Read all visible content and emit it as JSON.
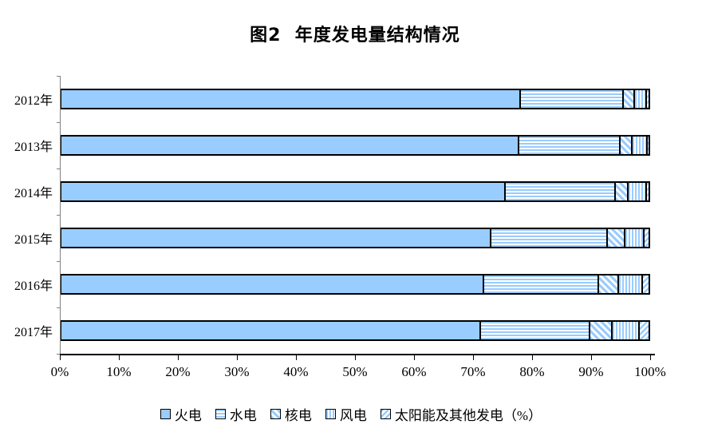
{
  "chart_data": {
    "type": "bar",
    "orientation": "horizontal",
    "stacked": true,
    "title": "图2  年度发电量结构情况",
    "categories": [
      "2012年",
      "2013年",
      "2014年",
      "2015年",
      "2016年",
      "2017年"
    ],
    "series": [
      {
        "name": "火电",
        "key": "thermal",
        "pattern": "solid",
        "values": [
          78.1,
          77.8,
          75.6,
          73.1,
          71.9,
          71.4
        ]
      },
      {
        "name": "水电",
        "key": "hydro",
        "pattern": "horizontal-stripes",
        "values": [
          17.4,
          17.2,
          18.6,
          19.8,
          19.5,
          18.4
        ]
      },
      {
        "name": "核电",
        "key": "nuclear",
        "pattern": "diagonal-down-stripes",
        "values": [
          1.9,
          2.0,
          2.1,
          2.9,
          3.3,
          3.8
        ]
      },
      {
        "name": "风电",
        "key": "wind",
        "pattern": "vertical-stripes",
        "values": [
          2.1,
          2.6,
          3.2,
          3.3,
          4.1,
          4.6
        ]
      },
      {
        "name": "太阳能及其他发电（%）",
        "key": "solar-other",
        "pattern": "diagonal-up-stripes",
        "values": [
          0.5,
          0.4,
          0.5,
          0.9,
          1.2,
          1.8
        ]
      }
    ],
    "x_ticks": [
      "0%",
      "10%",
      "20%",
      "30%",
      "40%",
      "50%",
      "60%",
      "70%",
      "80%",
      "90%",
      "100%"
    ],
    "xlim": [
      0,
      100
    ],
    "xlabel": "",
    "ylabel": "",
    "grid": false,
    "legend_position": "bottom",
    "colors": {
      "bar_fill": "#99CCFF",
      "pattern_background": "#FFFFFF",
      "segment_border": "#000000",
      "x_axis": "#000000",
      "y_axis": "#808080",
      "text": "#000000",
      "background": "#FFFFFF"
    }
  }
}
